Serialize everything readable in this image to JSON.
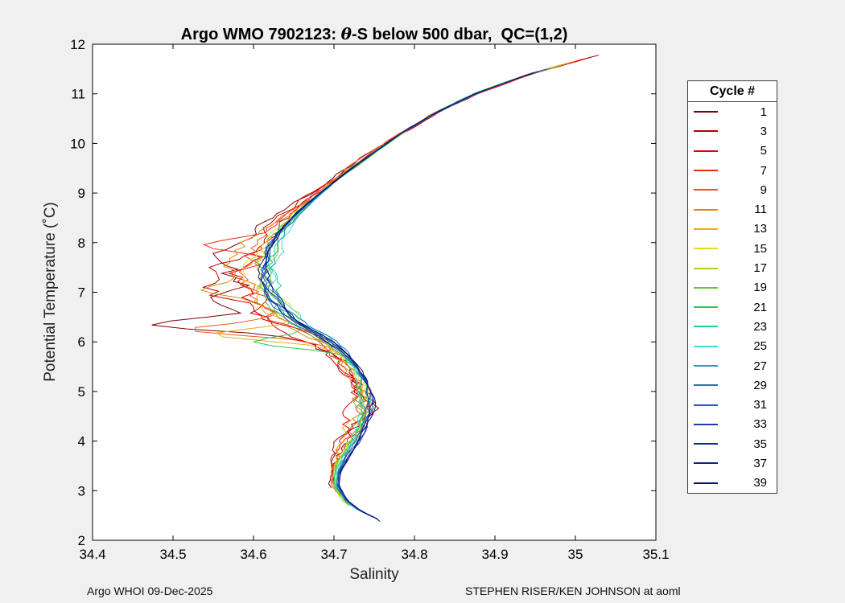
{
  "figure": {
    "bg_color": "#f0f0f0",
    "plot_bg_color": "#ffffff",
    "title_prefix": "Argo WMO 7902123: ",
    "title_theta": "θ",
    "title_suffix": "-S below 500 dbar,  QC=(1,2)",
    "footer_left": "Argo WHOI 09-Dec-2025",
    "footer_right": "STEPHEN RISER/KEN JOHNSON at aoml"
  },
  "legend": {
    "title": "Cycle #"
  },
  "chart_data": {
    "type": "line",
    "title": "Argo WMO 7902123: θ-S below 500 dbar,  QC=(1,2)",
    "xlabel": "Salinity",
    "ylabel": "Potential Temperature (˚C)",
    "xlim": [
      34.4,
      35.1
    ],
    "ylim": [
      2,
      12
    ],
    "grid": false,
    "legend_position": "right-outside",
    "legend_title": "Cycle #",
    "x_ticks": [
      34.4,
      34.5,
      34.6,
      34.7,
      34.8,
      34.9,
      35,
      35.1
    ],
    "x_tick_labels": [
      "34.4",
      "34.5",
      "34.6",
      "34.7",
      "34.8",
      "34.9",
      "35",
      "35.1"
    ],
    "y_ticks": [
      2,
      3,
      4,
      5,
      6,
      7,
      8,
      9,
      10,
      11,
      12
    ],
    "y_tick_labels": [
      "2",
      "3",
      "4",
      "5",
      "6",
      "7",
      "8",
      "9",
      "10",
      "11",
      "12"
    ],
    "base_profile_theta_S": [
      [
        11.8,
        35.033
      ],
      [
        11.4,
        34.943
      ],
      [
        11.0,
        34.875
      ],
      [
        10.6,
        34.824
      ],
      [
        10.2,
        34.783
      ],
      [
        9.8,
        34.748
      ],
      [
        9.4,
        34.714
      ],
      [
        9.0,
        34.683
      ],
      [
        8.6,
        34.654
      ],
      [
        8.2,
        34.63
      ],
      [
        7.9,
        34.62
      ],
      [
        7.6,
        34.613
      ],
      [
        7.3,
        34.611
      ],
      [
        7.0,
        34.617
      ],
      [
        6.7,
        34.632
      ],
      [
        6.4,
        34.652
      ],
      [
        6.1,
        34.683
      ],
      [
        5.8,
        34.709
      ],
      [
        5.5,
        34.723
      ],
      [
        5.2,
        34.733
      ],
      [
        4.9,
        34.738
      ],
      [
        4.6,
        34.737
      ],
      [
        4.3,
        34.73
      ],
      [
        4.0,
        34.722
      ],
      [
        3.7,
        34.711
      ],
      [
        3.4,
        34.702
      ],
      [
        3.1,
        34.701
      ],
      [
        2.8,
        34.713
      ],
      [
        2.6,
        34.73
      ],
      [
        2.4,
        34.756
      ]
    ],
    "generation": {
      "seed": 42,
      "step": 0.08,
      "damp": 0.86,
      "env_base": 0.13,
      "env_center": 7.1,
      "env_width": 1.15,
      "deep_env_amp": 0.5,
      "deep_env_center": 4.7,
      "deep_env_width": 1.0,
      "shift_center": 7.1,
      "shift_width": 1.35,
      "deep_center": 4.3,
      "deep_width": 1.5,
      "spike_width": 0.16
    },
    "series": [
      {
        "name": "1",
        "cycle": 1,
        "color": "#7f0000",
        "midShift": -0.046,
        "noiseAmp": 0.055,
        "deepShift": -0.01,
        "thetaMax": 11.78,
        "thetaMin": 3.05,
        "spikes": [
          [
            6.35,
            34.473
          ]
        ]
      },
      {
        "name": "3",
        "cycle": 3,
        "color": "#b40000",
        "midShift": -0.04,
        "noiseAmp": 0.05,
        "deepShift": -0.009,
        "thetaMax": 11.74,
        "thetaMin": 3.15,
        "spikes": [
          [
            7.5,
            34.545
          ]
        ]
      },
      {
        "name": "5",
        "cycle": 5,
        "color": "#dc0000",
        "midShift": -0.036,
        "noiseAmp": 0.046,
        "deepShift": -0.008,
        "thetaMax": 11.7,
        "thetaMin": 2.95
      },
      {
        "name": "7",
        "cycle": 7,
        "color": "#f02814",
        "midShift": -0.032,
        "noiseAmp": 0.044,
        "deepShift": -0.007,
        "thetaMax": 11.72,
        "thetaMin": 3.0,
        "spikes": [
          [
            7.95,
            34.538
          ]
        ]
      },
      {
        "name": "9",
        "cycle": 9,
        "color": "#f0561e",
        "midShift": -0.028,
        "noiseAmp": 0.042,
        "deepShift": -0.006,
        "thetaMax": 11.65,
        "thetaMin": 2.9,
        "spikes": [
          [
            6.25,
            34.52
          ]
        ]
      },
      {
        "name": "11",
        "cycle": 11,
        "color": "#dc8c14",
        "midShift": -0.024,
        "noiseAmp": 0.038,
        "deepShift": -0.005,
        "thetaMax": 11.6,
        "thetaMin": 2.85,
        "spikes": [
          [
            7.05,
            34.535
          ]
        ]
      },
      {
        "name": "13",
        "cycle": 13,
        "color": "#f0aa14",
        "midShift": -0.018,
        "noiseAmp": 0.034,
        "deepShift": -0.004,
        "thetaMax": 11.62,
        "thetaMin": 2.8,
        "spikes": [
          [
            6.15,
            34.55
          ]
        ]
      },
      {
        "name": "15",
        "cycle": 15,
        "color": "#e6dc1e",
        "midShift": -0.012,
        "noiseAmp": 0.03,
        "deepShift": -0.002,
        "thetaMax": 11.55,
        "thetaMin": 2.75
      },
      {
        "name": "17",
        "cycle": 17,
        "color": "#aad21e",
        "midShift": -0.006,
        "noiseAmp": 0.026,
        "deepShift": -0.001,
        "thetaMax": 11.58,
        "thetaMin": 2.7
      },
      {
        "name": "19",
        "cycle": 19,
        "color": "#5ac832",
        "midShift": 0.0,
        "noiseAmp": 0.024,
        "deepShift": 0.0,
        "thetaMax": 11.5,
        "thetaMin": 2.65
      },
      {
        "name": "21",
        "cycle": 21,
        "color": "#28c850",
        "midShift": 0.004,
        "noiseAmp": 0.022,
        "deepShift": 0.001,
        "thetaMax": 11.52,
        "thetaMin": 2.6,
        "spikes": [
          [
            6.0,
            34.6
          ]
        ]
      },
      {
        "name": "23",
        "cycle": 23,
        "color": "#1ed29b",
        "midShift": 0.01,
        "noiseAmp": 0.02,
        "deepShift": 0.002,
        "thetaMax": 11.45,
        "thetaMin": 2.55
      },
      {
        "name": "25",
        "cycle": 25,
        "color": "#3cdcdc",
        "midShift": 0.012,
        "noiseAmp": 0.018,
        "deepShift": 0.003,
        "thetaMax": 11.5,
        "thetaMin": 2.5
      },
      {
        "name": "27",
        "cycle": 27,
        "color": "#28a0b4",
        "midShift": 0.01,
        "noiseAmp": 0.016,
        "deepShift": 0.004,
        "thetaMax": 11.42,
        "thetaMin": 2.5
      },
      {
        "name": "29",
        "cycle": 29,
        "color": "#1e78aa",
        "midShift": 0.006,
        "noiseAmp": 0.014,
        "deepShift": 0.005,
        "thetaMax": 11.45,
        "thetaMin": 2.45
      },
      {
        "name": "31",
        "cycle": 31,
        "color": "#2857c8",
        "midShift": 0.002,
        "noiseAmp": 0.012,
        "deepShift": 0.006,
        "thetaMax": 11.5,
        "thetaMin": 2.42
      },
      {
        "name": "33",
        "cycle": 33,
        "color": "#1e3cb4",
        "midShift": 0.0,
        "noiseAmp": 0.011,
        "deepShift": 0.007,
        "thetaMax": 11.4,
        "thetaMin": 2.4
      },
      {
        "name": "35",
        "cycle": 35,
        "color": "#142d9b",
        "midShift": -0.002,
        "noiseAmp": 0.01,
        "deepShift": 0.008,
        "thetaMax": 11.45,
        "thetaMin": 2.42
      },
      {
        "name": "37",
        "cycle": 37,
        "color": "#0f1f87",
        "midShift": 0.0,
        "noiseAmp": 0.009,
        "deepShift": 0.009,
        "thetaMax": 11.38,
        "thetaMin": 2.4
      },
      {
        "name": "39",
        "cycle": 39,
        "color": "#0a1478",
        "midShift": 0.002,
        "noiseAmp": 0.009,
        "deepShift": 0.01,
        "thetaMax": 11.42,
        "thetaMin": 2.38
      }
    ]
  }
}
